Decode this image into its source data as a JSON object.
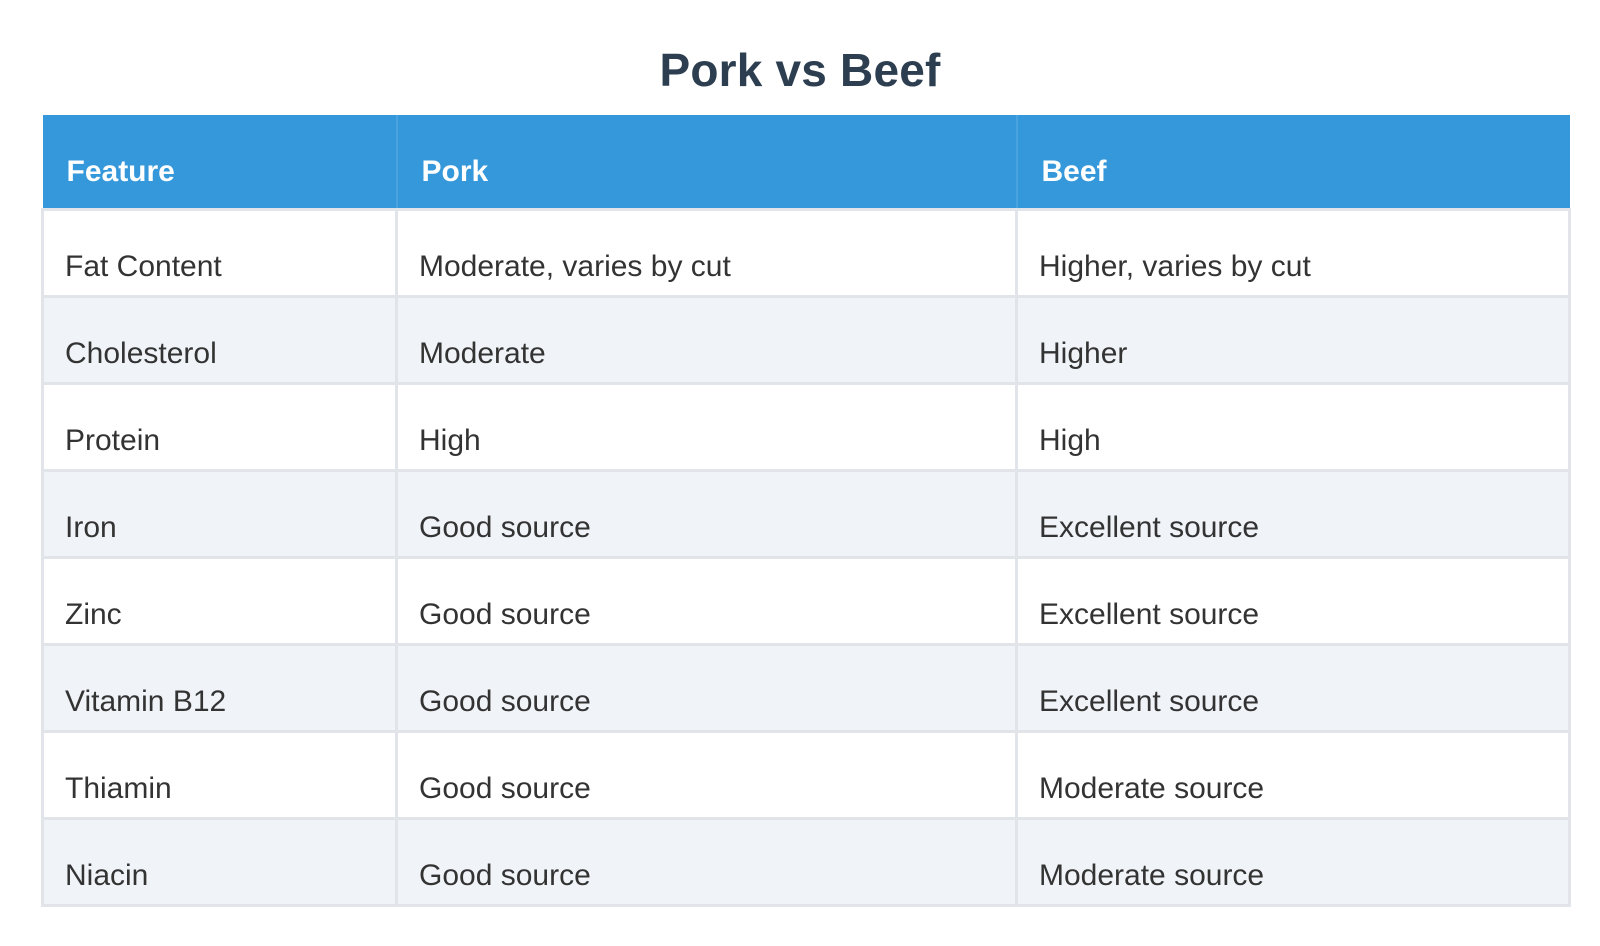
{
  "title": "Pork vs Beef",
  "table": {
    "headers": [
      "Feature",
      "Pork",
      "Beef"
    ],
    "rows": [
      [
        "Fat Content",
        "Moderate, varies by cut",
        "Higher, varies by cut"
      ],
      [
        "Cholesterol",
        "Moderate",
        "Higher"
      ],
      [
        "Protein",
        "High",
        "High"
      ],
      [
        "Iron",
        "Good source",
        "Excellent source"
      ],
      [
        "Zinc",
        "Good source",
        "Excellent source"
      ],
      [
        "Vitamin B12",
        "Good source",
        "Excellent source"
      ],
      [
        "Thiamin",
        "Good source",
        "Moderate source"
      ],
      [
        "Niacin",
        "Good source",
        "Moderate source"
      ]
    ]
  },
  "colors": {
    "header_bg": "#3498db",
    "title": "#2c3e50",
    "row_alt": "#f0f4f8"
  }
}
